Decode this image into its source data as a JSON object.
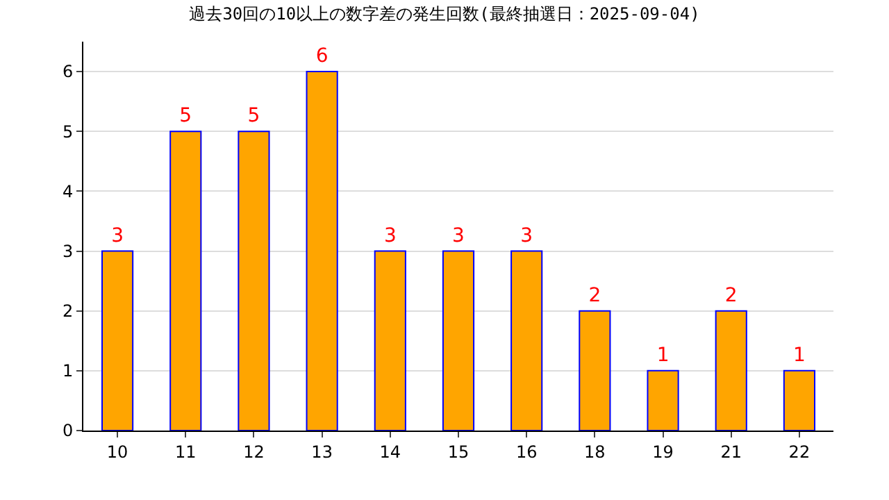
{
  "chart_data": {
    "type": "bar",
    "title": "過去30回の10以上の数字差の発生回数(最終抽選日：2025-09-04)",
    "categories": [
      "10",
      "11",
      "12",
      "13",
      "14",
      "15",
      "16",
      "18",
      "19",
      "21",
      "22"
    ],
    "values": [
      3,
      5,
      5,
      6,
      3,
      3,
      3,
      2,
      1,
      2,
      1
    ],
    "color": "#ffa500",
    "ylim": [
      0,
      6.5
    ],
    "yticks": [
      0,
      1,
      2,
      3,
      4,
      5,
      6
    ],
    "grid": "y",
    "data_labels": true
  }
}
